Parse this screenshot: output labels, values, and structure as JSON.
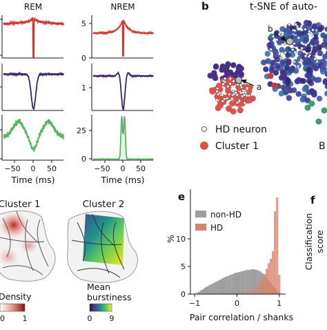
{
  "panel_a": {
    "columns": [
      "REM",
      "NREM"
    ],
    "rem_y_ticks": {
      "row1": [
        "",
        ""
      ],
      "row2": [
        "",
        ""
      ],
      "row3": [
        "",
        ""
      ]
    },
    "nrem_y_ticks": {
      "row1": [
        "0",
        "5"
      ],
      "row2": [
        "1"
      ],
      "row3": [
        "0",
        "25"
      ]
    },
    "x_ticks": [
      "−50",
      "0",
      "50"
    ],
    "xlabel": "Time (ms)",
    "colors": {
      "row1": "#d63333",
      "row2": "#3a1d66",
      "row3": "#55b364"
    }
  },
  "panel_b": {
    "letter": "b",
    "title": "t-SNE of auto-",
    "label_a": "a",
    "label_b": "b",
    "legend": {
      "hd": "HD neuron",
      "cluster1": "Cluster 1"
    },
    "partial_label": "B"
  },
  "panel_d": {
    "cluster1_title": "Cluster 1",
    "cluster2_title": "Cluster 2",
    "density_label": "Density",
    "density_ticks": [
      "0",
      "1"
    ],
    "burst_label": "Mean\nburstiness",
    "burst_label_line1": "Mean",
    "burst_label_line2": "burstiness",
    "burst_ticks": [
      "0",
      "9"
    ]
  },
  "panel_e": {
    "letter": "e",
    "ylabel": "%",
    "xlabel": "Pair correlation / shanks",
    "legend": {
      "nonhd": "non-HD",
      "hd": "HD"
    },
    "colors": {
      "nonhd": "#9e9e9e",
      "hd": "#d9826a"
    }
  },
  "panel_f": {
    "letter": "f",
    "ylabel_line1": "Classification",
    "ylabel_line2": "score"
  },
  "chart_data": [
    {
      "type": "line",
      "title": "REM",
      "xlabel": "Time (ms)",
      "xlim": [
        -90,
        90
      ],
      "rows": 3
    },
    {
      "type": "line",
      "title": "NREM",
      "xlabel": "Time (ms)",
      "xlim": [
        -90,
        90
      ],
      "rows": 3,
      "y_ticks": [
        [
          0,
          5
        ],
        [
          1
        ],
        [
          0,
          25
        ]
      ]
    },
    {
      "type": "scatter",
      "title": "t-SNE of auto-",
      "legend": [
        "HD neuron",
        "Cluster 1"
      ]
    },
    {
      "type": "bar",
      "xlabel": "Pair correlation / shanks",
      "ylabel": "%",
      "xlim": [
        -1.1,
        1.15
      ],
      "ylim": [
        0,
        19
      ],
      "y_ticks": [
        0,
        5,
        10
      ],
      "x_ticks": [
        -1,
        0,
        1
      ],
      "series": [
        {
          "name": "non-HD",
          "color": "#9e9e9e",
          "x": [
            -0.95,
            -0.9,
            -0.85,
            -0.8,
            -0.75,
            -0.7,
            -0.65,
            -0.6,
            -0.55,
            -0.5,
            -0.45,
            -0.4,
            -0.35,
            -0.3,
            -0.25,
            -0.2,
            -0.15,
            -0.1,
            -0.05,
            0,
            0.05,
            0.1,
            0.15,
            0.2,
            0.25,
            0.3,
            0.35,
            0.4,
            0.45,
            0.5,
            0.55,
            0.6,
            0.65,
            0.7,
            0.75,
            0.8,
            0.85,
            0.9,
            0.95,
            1.0
          ],
          "values": [
            0.2,
            0.4,
            0.7,
            0.9,
            1.2,
            1.4,
            1.6,
            1.8,
            2.0,
            2.2,
            2.4,
            2.6,
            2.8,
            3.0,
            3.2,
            3.3,
            3.5,
            3.6,
            3.8,
            3.9,
            4.0,
            4.1,
            4.2,
            4.3,
            4.4,
            4.4,
            4.5,
            4.5,
            4.4,
            4.3,
            4.1,
            3.8,
            3.4,
            3.0,
            2.5,
            2.0,
            1.5,
            1.0,
            0.5,
            0.2
          ]
        },
        {
          "name": "HD",
          "color": "#d9826a",
          "x": [
            -0.25,
            -0.1,
            0.05,
            0.15,
            0.25,
            0.35,
            0.45,
            0.55,
            0.6,
            0.65,
            0.7,
            0.75,
            0.8,
            0.85,
            0.9,
            0.95,
            1.0
          ],
          "values": [
            0.2,
            0.3,
            0.4,
            0.5,
            0.7,
            0.9,
            1.3,
            2.0,
            2.8,
            3.6,
            4.6,
            5.6,
            6.4,
            7.8,
            15.0,
            17.5,
            3.5
          ]
        }
      ]
    }
  ]
}
